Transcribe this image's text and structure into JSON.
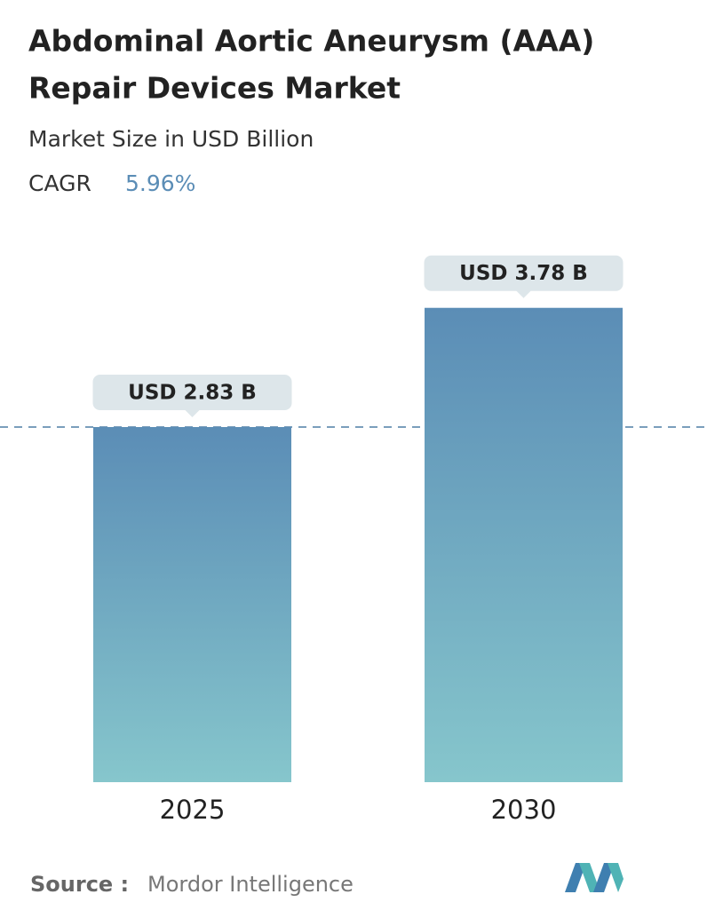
{
  "chart_data": {
    "type": "bar",
    "title": [
      "Abdominal Aortic Aneurysm (AAA)",
      "Repair Devices Market"
    ],
    "subtitle": "Market Size in USD Billion",
    "cagr_label": "CAGR",
    "cagr": "5.96%",
    "categories": [
      "2025",
      "2030"
    ],
    "values": [
      2.83,
      3.78
    ],
    "value_labels": [
      "USD 2.83 B",
      "USD 3.78 B"
    ],
    "gradient": [
      "#5b8db6",
      "#86c6cc"
    ],
    "source_label": "Source :",
    "source": "Mordor Intelligence"
  }
}
